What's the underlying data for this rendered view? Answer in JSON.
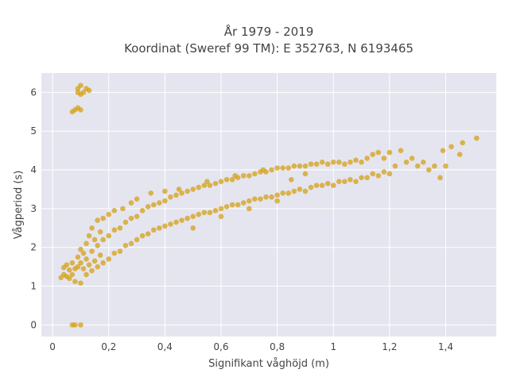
{
  "chart_data": {
    "type": "scatter",
    "title": "År 1979 - 2019",
    "subtitle": "Koordinat (Sweref 99 TM): E 352763, N 6193465",
    "xlabel": "Signifikant våghöjd (m)",
    "ylabel": "Vågperiod (s)",
    "xlim": [
      -0.04,
      1.58
    ],
    "ylim": [
      -0.3,
      6.5
    ],
    "xticks": [
      0,
      0.2,
      0.4,
      0.6,
      0.8,
      1,
      1.2,
      1.4
    ],
    "xtick_labels": [
      "0",
      "0,2",
      "0,4",
      "0,6",
      "0,8",
      "1",
      "1,2",
      "1,4"
    ],
    "yticks": [
      0,
      1,
      2,
      3,
      4,
      5,
      6
    ],
    "ytick_labels": [
      "0",
      "1",
      "2",
      "3",
      "4",
      "5",
      "6"
    ],
    "grid": true,
    "color": "#d4a017",
    "plot_background": "#e5e5ef",
    "series": [
      {
        "points": [
          [
            0.03,
            1.22
          ],
          [
            0.04,
            1.3
          ],
          [
            0.04,
            1.48
          ],
          [
            0.05,
            1.25
          ],
          [
            0.05,
            1.55
          ],
          [
            0.06,
            1.2
          ],
          [
            0.06,
            1.42
          ],
          [
            0.07,
            1.3
          ],
          [
            0.07,
            1.6
          ],
          [
            0.08,
            1.12
          ],
          [
            0.08,
            1.45
          ],
          [
            0.09,
            1.5
          ],
          [
            0.09,
            1.75
          ],
          [
            0.1,
            1.08
          ],
          [
            0.1,
            1.6
          ],
          [
            0.1,
            1.95
          ],
          [
            0.11,
            1.45
          ],
          [
            0.11,
            1.85
          ],
          [
            0.12,
            1.3
          ],
          [
            0.12,
            1.7
          ],
          [
            0.12,
            2.1
          ],
          [
            0.13,
            1.55
          ],
          [
            0.13,
            2.3
          ],
          [
            0.14,
            1.4
          ],
          [
            0.14,
            1.9
          ],
          [
            0.14,
            2.5
          ],
          [
            0.15,
            1.65
          ],
          [
            0.15,
            2.2
          ],
          [
            0.16,
            1.5
          ],
          [
            0.16,
            2.05
          ],
          [
            0.16,
            2.7
          ],
          [
            0.17,
            1.8
          ],
          [
            0.17,
            2.4
          ],
          [
            0.18,
            1.6
          ],
          [
            0.18,
            2.2
          ],
          [
            0.18,
            2.75
          ],
          [
            0.2,
            1.7
          ],
          [
            0.2,
            2.3
          ],
          [
            0.2,
            2.85
          ],
          [
            0.22,
            1.85
          ],
          [
            0.22,
            2.45
          ],
          [
            0.22,
            2.95
          ],
          [
            0.24,
            1.9
          ],
          [
            0.24,
            2.5
          ],
          [
            0.25,
            3.0
          ],
          [
            0.26,
            2.05
          ],
          [
            0.26,
            2.65
          ],
          [
            0.28,
            2.1
          ],
          [
            0.28,
            2.75
          ],
          [
            0.28,
            3.15
          ],
          [
            0.3,
            2.2
          ],
          [
            0.3,
            2.8
          ],
          [
            0.3,
            3.25
          ],
          [
            0.32,
            2.3
          ],
          [
            0.32,
            2.95
          ],
          [
            0.34,
            2.35
          ],
          [
            0.34,
            3.05
          ],
          [
            0.35,
            3.4
          ],
          [
            0.36,
            2.45
          ],
          [
            0.36,
            3.1
          ],
          [
            0.38,
            2.5
          ],
          [
            0.38,
            3.15
          ],
          [
            0.4,
            2.55
          ],
          [
            0.4,
            3.2
          ],
          [
            0.4,
            3.45
          ],
          [
            0.42,
            2.6
          ],
          [
            0.42,
            3.3
          ],
          [
            0.44,
            2.65
          ],
          [
            0.44,
            3.35
          ],
          [
            0.45,
            3.5
          ],
          [
            0.46,
            2.7
          ],
          [
            0.46,
            3.4
          ],
          [
            0.48,
            2.75
          ],
          [
            0.48,
            3.45
          ],
          [
            0.5,
            2.5
          ],
          [
            0.5,
            2.8
          ],
          [
            0.5,
            3.5
          ],
          [
            0.52,
            2.85
          ],
          [
            0.52,
            3.55
          ],
          [
            0.54,
            2.9
          ],
          [
            0.54,
            3.6
          ],
          [
            0.55,
            3.7
          ],
          [
            0.56,
            2.9
          ],
          [
            0.56,
            3.6
          ],
          [
            0.58,
            2.95
          ],
          [
            0.58,
            3.65
          ],
          [
            0.6,
            2.8
          ],
          [
            0.6,
            3.0
          ],
          [
            0.6,
            3.7
          ],
          [
            0.62,
            3.05
          ],
          [
            0.62,
            3.75
          ],
          [
            0.64,
            3.1
          ],
          [
            0.64,
            3.75
          ],
          [
            0.65,
            3.85
          ],
          [
            0.66,
            3.1
          ],
          [
            0.66,
            3.8
          ],
          [
            0.68,
            3.15
          ],
          [
            0.68,
            3.85
          ],
          [
            0.7,
            3.0
          ],
          [
            0.7,
            3.2
          ],
          [
            0.7,
            3.85
          ],
          [
            0.72,
            3.25
          ],
          [
            0.72,
            3.9
          ],
          [
            0.74,
            3.25
          ],
          [
            0.74,
            3.95
          ],
          [
            0.75,
            4.0
          ],
          [
            0.76,
            3.3
          ],
          [
            0.76,
            3.95
          ],
          [
            0.78,
            3.3
          ],
          [
            0.78,
            4.0
          ],
          [
            0.8,
            3.2
          ],
          [
            0.8,
            3.35
          ],
          [
            0.8,
            4.05
          ],
          [
            0.82,
            3.4
          ],
          [
            0.82,
            4.05
          ],
          [
            0.84,
            3.4
          ],
          [
            0.84,
            4.05
          ],
          [
            0.86,
            3.45
          ],
          [
            0.86,
            4.1
          ],
          [
            0.88,
            3.5
          ],
          [
            0.88,
            4.1
          ],
          [
            0.9,
            3.45
          ],
          [
            0.9,
            4.1
          ],
          [
            0.92,
            3.55
          ],
          [
            0.92,
            4.15
          ],
          [
            0.94,
            3.6
          ],
          [
            0.94,
            4.15
          ],
          [
            0.96,
            3.6
          ],
          [
            0.96,
            4.2
          ],
          [
            0.98,
            3.65
          ],
          [
            0.98,
            4.15
          ],
          [
            1.0,
            3.6
          ],
          [
            1.0,
            4.2
          ],
          [
            1.02,
            3.7
          ],
          [
            1.02,
            4.2
          ],
          [
            1.04,
            3.7
          ],
          [
            1.04,
            4.15
          ],
          [
            1.06,
            3.75
          ],
          [
            1.06,
            4.2
          ],
          [
            1.08,
            3.7
          ],
          [
            1.08,
            4.25
          ],
          [
            1.1,
            3.8
          ],
          [
            1.1,
            4.2
          ],
          [
            1.12,
            3.8
          ],
          [
            1.12,
            4.3
          ],
          [
            1.14,
            3.9
          ],
          [
            1.14,
            4.4
          ],
          [
            1.16,
            3.85
          ],
          [
            1.16,
            4.45
          ],
          [
            1.18,
            3.95
          ],
          [
            1.18,
            4.3
          ],
          [
            1.2,
            3.9
          ],
          [
            1.2,
            4.45
          ],
          [
            1.22,
            4.1
          ],
          [
            1.24,
            4.5
          ],
          [
            1.26,
            4.2
          ],
          [
            1.28,
            4.3
          ],
          [
            1.3,
            4.1
          ],
          [
            1.32,
            4.2
          ],
          [
            1.34,
            4.0
          ],
          [
            1.36,
            4.1
          ],
          [
            1.38,
            3.8
          ],
          [
            1.4,
            4.1
          ],
          [
            1.42,
            4.6
          ],
          [
            1.45,
            4.4
          ],
          [
            1.46,
            4.7
          ],
          [
            1.39,
            4.5
          ],
          [
            1.51,
            4.82
          ],
          [
            0.9,
            3.9
          ],
          [
            0.85,
            3.75
          ],
          [
            0.07,
            0.0
          ],
          [
            0.08,
            0.0
          ],
          [
            0.1,
            0.0
          ],
          [
            0.07,
            5.5
          ],
          [
            0.08,
            5.55
          ],
          [
            0.09,
            5.6
          ],
          [
            0.1,
            5.95
          ],
          [
            0.09,
            6.1
          ],
          [
            0.1,
            6.18
          ],
          [
            0.11,
            6.0
          ],
          [
            0.12,
            6.1
          ],
          [
            0.13,
            6.05
          ],
          [
            0.1,
            5.55
          ],
          [
            0.09,
            6.0
          ]
        ]
      }
    ]
  }
}
